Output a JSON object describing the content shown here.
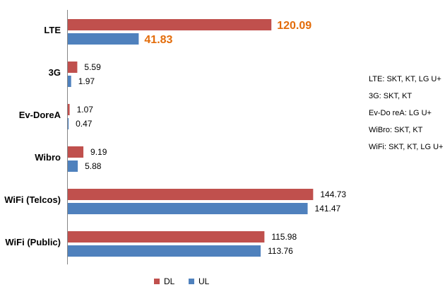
{
  "chart_data": {
    "type": "bar",
    "orientation": "horizontal",
    "categories": [
      "LTE",
      "3G",
      "Ev-DoreA",
      "Wibro",
      "WiFi (Telcos)",
      "WiFi (Public)"
    ],
    "series": [
      {
        "name": "DL",
        "color": "#c0504d",
        "values": [
          120.09,
          5.59,
          1.07,
          9.19,
          144.73,
          115.98
        ],
        "labels": [
          "120.09",
          "5.59",
          "1.07",
          "9.19",
          "144.73",
          "115.98"
        ]
      },
      {
        "name": "UL",
        "color": "#4f81bd",
        "values": [
          41.83,
          1.97,
          0.47,
          5.88,
          141.47,
          113.76
        ],
        "labels": [
          "41.83",
          "1.97",
          "0.47",
          "5.88",
          "141.47",
          "113.76"
        ]
      }
    ],
    "highlight_category": "LTE",
    "highlight_color": "#e36c0a",
    "xlim": [
      0,
      160
    ],
    "grid": false,
    "legend": "bottom"
  },
  "notes": [
    "LTE: SKT, KT, LG U+",
    "3G: SKT, KT",
    "Ev-Do reA: LG U+",
    "WiBro: SKT, KT",
    "WiFi: SKT, KT, LG U+"
  ]
}
